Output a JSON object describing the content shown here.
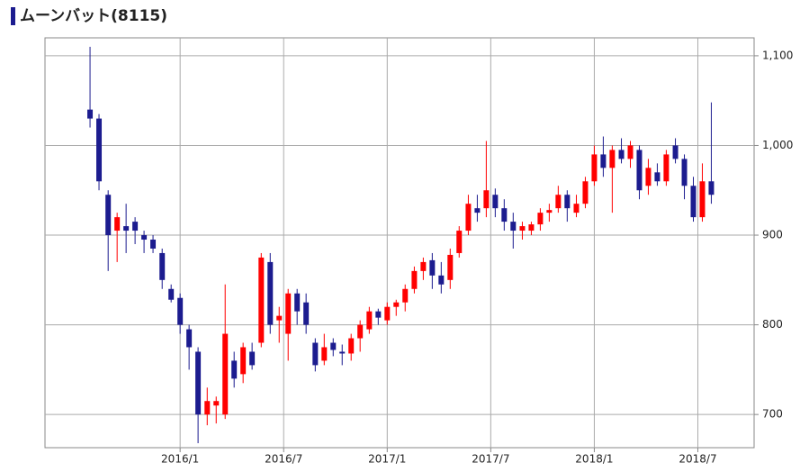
{
  "chart_data": {
    "type": "candlestick",
    "title": "ムーンバット(8115)",
    "up_color": "#ff0000",
    "down_color": "#1c1c8f",
    "grid": true,
    "xlim": [
      -7.83,
      33.26
    ],
    "ylim": [
      663,
      1120
    ],
    "xticks": [
      {
        "value": 0,
        "label": "2016/1"
      },
      {
        "value": 6,
        "label": "2016/7"
      },
      {
        "value": 12,
        "label": "2017/1"
      },
      {
        "value": 18,
        "label": "2017/7"
      },
      {
        "value": 24,
        "label": "2018/1"
      },
      {
        "value": 30,
        "label": "2018/7"
      }
    ],
    "yticks": [
      700,
      800,
      900,
      {
        "value": 1000,
        "label": "1,000"
      },
      {
        "value": 1100,
        "label": "1,100"
      }
    ],
    "x": [
      -5.22,
      -4.7,
      -4.17,
      -3.65,
      -3.13,
      -2.61,
      -2.09,
      -1.57,
      -1.04,
      -0.52,
      0,
      0.52,
      1.04,
      1.57,
      2.09,
      2.61,
      3.13,
      3.65,
      4.17,
      4.7,
      5.22,
      5.74,
      6.26,
      6.78,
      7.3,
      7.83,
      8.35,
      8.87,
      9.39,
      9.91,
      10.43,
      10.96,
      11.48,
      12,
      12.52,
      13.04,
      13.57,
      14.09,
      14.61,
      15.13,
      15.65,
      16.17,
      16.7,
      17.22,
      17.74,
      18.26,
      18.78,
      19.3,
      19.83,
      20.35,
      20.87,
      21.39,
      21.91,
      22.43,
      22.96,
      23.48,
      24,
      24.52,
      25.04,
      25.57,
      26.09,
      26.61,
      27.13,
      27.65,
      28.17,
      28.7,
      29.22,
      29.74,
      30.26,
      30.78
    ],
    "open": [
      1040,
      1030,
      945,
      905,
      910,
      915,
      900,
      895,
      880,
      840,
      830,
      795,
      770,
      700,
      710,
      700,
      760,
      745,
      770,
      780,
      870,
      805,
      790,
      835,
      825,
      780,
      760,
      780,
      770,
      768,
      785,
      795,
      815,
      805,
      820,
      825,
      840,
      860,
      872,
      855,
      850,
      880,
      905,
      930,
      930,
      945,
      930,
      915,
      905,
      905,
      912,
      925,
      930,
      945,
      925,
      935,
      960,
      990,
      975,
      995,
      985,
      995,
      955,
      970,
      960,
      1000,
      985,
      955,
      920,
      960
    ],
    "high": [
      1110,
      1035,
      950,
      925,
      935,
      920,
      905,
      900,
      885,
      845,
      835,
      800,
      775,
      730,
      720,
      845,
      770,
      780,
      780,
      880,
      880,
      820,
      840,
      840,
      835,
      785,
      790,
      785,
      778,
      790,
      805,
      820,
      818,
      825,
      828,
      845,
      865,
      875,
      880,
      870,
      885,
      910,
      945,
      945,
      1005,
      952,
      940,
      925,
      915,
      915,
      930,
      935,
      955,
      950,
      945,
      965,
      1000,
      1010,
      1000,
      1008,
      1005,
      1000,
      985,
      980,
      995,
      1008,
      990,
      965,
      980,
      1048
    ],
    "low": [
      1020,
      950,
      860,
      870,
      880,
      890,
      880,
      880,
      840,
      825,
      790,
      750,
      668,
      688,
      690,
      695,
      730,
      735,
      750,
      775,
      790,
      780,
      760,
      800,
      790,
      748,
      755,
      765,
      755,
      760,
      770,
      790,
      800,
      800,
      810,
      815,
      835,
      850,
      840,
      835,
      840,
      875,
      900,
      915,
      920,
      920,
      905,
      885,
      895,
      900,
      905,
      915,
      925,
      915,
      920,
      930,
      955,
      965,
      925,
      980,
      975,
      940,
      945,
      955,
      955,
      980,
      940,
      915,
      915,
      935
    ],
    "close": [
      1030,
      960,
      900,
      920,
      905,
      905,
      895,
      885,
      850,
      828,
      800,
      775,
      700,
      715,
      715,
      790,
      740,
      775,
      755,
      875,
      800,
      810,
      835,
      815,
      800,
      755,
      775,
      772,
      768,
      785,
      800,
      815,
      808,
      820,
      825,
      840,
      860,
      870,
      855,
      845,
      878,
      905,
      935,
      925,
      950,
      930,
      915,
      905,
      910,
      912,
      925,
      928,
      945,
      930,
      935,
      960,
      990,
      975,
      995,
      985,
      1000,
      950,
      975,
      960,
      990,
      985,
      955,
      920,
      960,
      945
    ]
  }
}
